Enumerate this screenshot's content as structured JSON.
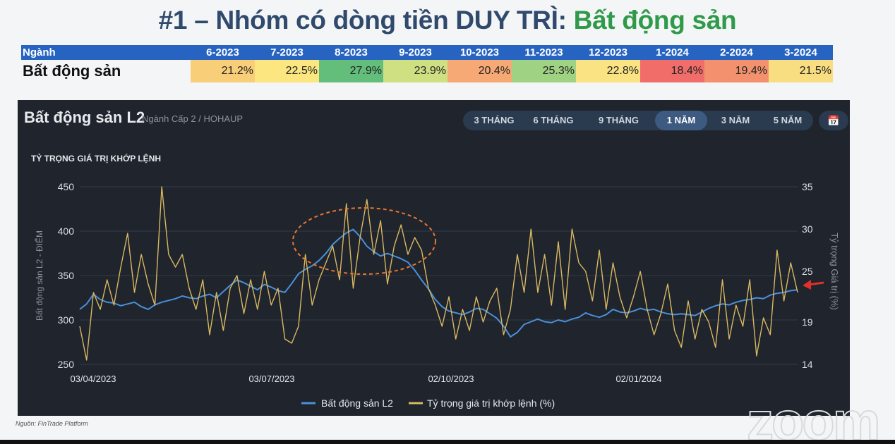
{
  "title": {
    "prefix": "#1 – Nhóm có dòng tiền DUY TRÌ: ",
    "highlight": "Bất động sản"
  },
  "table": {
    "header_label": "Ngành",
    "months": [
      "6-2023",
      "7-2023",
      "8-2023",
      "9-2023",
      "10-2023",
      "11-2023",
      "12-2023",
      "1-2024",
      "2-2024",
      "3-2024"
    ],
    "row_label": "Bất động sản",
    "values": [
      "21.2%",
      "22.5%",
      "27.9%",
      "23.9%",
      "20.4%",
      "25.3%",
      "22.8%",
      "18.4%",
      "19.4%",
      "21.5%"
    ],
    "cell_colors": [
      "#f8cf78",
      "#fbe680",
      "#63bd7b",
      "#cfe083",
      "#f6a975",
      "#9fd282",
      "#f9e383",
      "#f06d69",
      "#f3916e",
      "#f9de81"
    ]
  },
  "panel": {
    "title": "Bất động sản L2",
    "subtitle": "Ngành Cấp 2 / HOHAUP",
    "tabs": [
      "3 THÁNG",
      "6 THÁNG",
      "9 THÁNG",
      "1 NĂM",
      "3 NĂM",
      "5 NĂM"
    ],
    "active_tab": "1 NĂM",
    "calendar_icon": "calendar-icon"
  },
  "chart_data": {
    "type": "line",
    "title": "TỶ TRỌNG GIÁ TRỊ KHỚP LỆNH",
    "ylabel": "Bất động sản L2 - ĐIỂM",
    "y2label": "Tỷ trọng Giá trị (%)",
    "ylim": [
      250,
      450
    ],
    "y2lim": [
      14,
      35
    ],
    "yticks": [
      "250",
      "300",
      "350",
      "400",
      "450"
    ],
    "y2ticks": [
      "14",
      "19",
      "25",
      "30",
      "35"
    ],
    "x_tick_labels": [
      "03/04/2023",
      "03/07/2023",
      "02/10/2023",
      "02/01/2024"
    ],
    "grid": true,
    "legend_position": "bottom",
    "series": [
      {
        "name": "Bất động sản L2",
        "axis": "left",
        "color": "#4a90d9",
        "values": [
          312,
          318,
          329,
          323,
          320,
          319,
          316,
          318,
          320,
          315,
          312,
          317,
          320,
          322,
          324,
          327,
          325,
          324,
          327,
          329,
          325,
          332,
          339,
          345,
          342,
          338,
          334,
          340,
          337,
          333,
          331,
          341,
          352,
          357,
          361,
          367,
          375,
          385,
          392,
          398,
          402,
          394,
          383,
          377,
          372,
          375,
          372,
          369,
          365,
          356,
          345,
          335,
          323,
          315,
          310,
          308,
          306,
          309,
          313,
          312,
          307,
          302,
          293,
          281,
          286,
          295,
          298,
          301,
          298,
          297,
          300,
          298,
          301,
          303,
          308,
          305,
          303,
          306,
          312,
          309,
          308,
          310,
          313,
          311,
          312,
          309,
          307,
          306,
          307,
          306,
          305,
          309,
          313,
          316,
          318,
          317,
          320,
          322,
          323,
          325,
          324,
          328,
          330,
          331,
          333,
          334
        ]
      },
      {
        "name": "Tỷ trọng giá trị khớp lệnh (%)",
        "axis": "right",
        "color": "#d9b860",
        "values": [
          18.5,
          14.5,
          22.5,
          20.5,
          24,
          21,
          25.5,
          29.5,
          22.5,
          27,
          23.5,
          21,
          35,
          27,
          25.5,
          27,
          23,
          20.5,
          24,
          17.5,
          22.5,
          18,
          23,
          24.5,
          20,
          24,
          20.5,
          25,
          21,
          23,
          17,
          16.5,
          18.5,
          27,
          21,
          24,
          26,
          28,
          24,
          33,
          23,
          29,
          33.5,
          27,
          31,
          23.5,
          28,
          30.5,
          27,
          29,
          27.5,
          23,
          21,
          18.5,
          22,
          17,
          20.5,
          18,
          22,
          19,
          21.5,
          23,
          17.5,
          20.5,
          27,
          22.5,
          30,
          22.5,
          27,
          21,
          28.5,
          20.5,
          30,
          26,
          25,
          21.5,
          27.5,
          20.5,
          26,
          22,
          19.5,
          22,
          25,
          20.5,
          17.5,
          20,
          23.5,
          18,
          16,
          21.5,
          17,
          20.5,
          19,
          16,
          24,
          17,
          21,
          18.5,
          24,
          15,
          19.5,
          17.5,
          27.5,
          21.5,
          26,
          22.5
        ]
      }
    ],
    "annotations": [
      "dashed ellipse highlighting Jul–Sep 2023 peak",
      "red arrow pointing at latest value"
    ]
  },
  "footer": {
    "source": "Nguồn: FinTrade Platform",
    "watermark": "zoom"
  }
}
